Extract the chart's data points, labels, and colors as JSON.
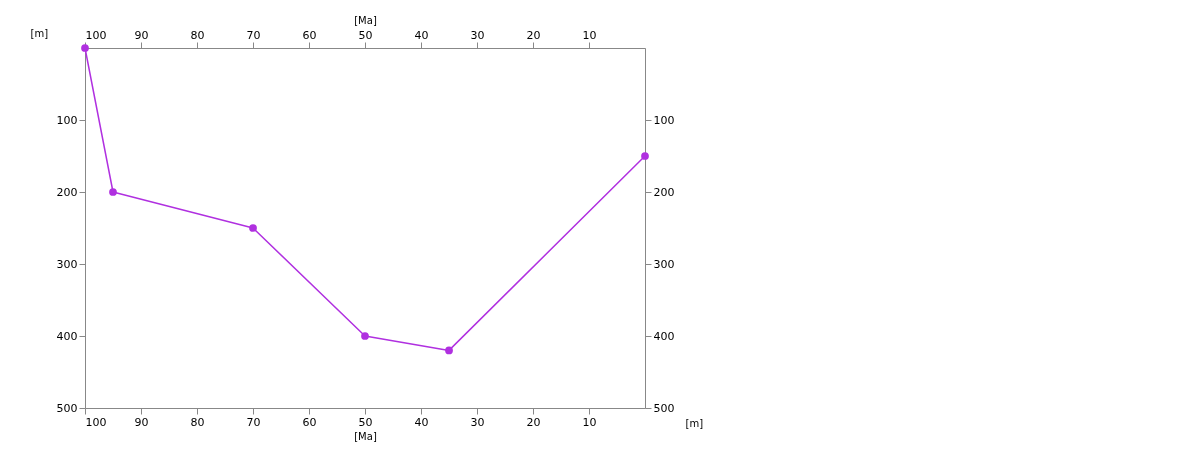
{
  "chart_data": {
    "type": "line",
    "xlabel": "[Ma]",
    "x2label": "[Ma]",
    "ylabel": "[m]",
    "y2label": "[m]",
    "x": [
      100,
      95,
      70,
      50,
      35,
      0
    ],
    "series": [
      {
        "color": "#b030e0",
        "values": [
          0,
          200,
          250,
          400,
          420,
          150
        ]
      }
    ],
    "xlim": [
      100,
      0
    ],
    "xticks": [
      100,
      90,
      80,
      70,
      60,
      50,
      40,
      30,
      20,
      10
    ],
    "x2lim": [
      100,
      0
    ],
    "x2ticks": [
      100,
      90,
      80,
      70,
      60,
      50,
      40,
      30,
      20,
      10
    ],
    "ylim": [
      500,
      0
    ],
    "yticks": [
      100,
      200,
      300,
      400,
      500
    ],
    "y2lim": [
      500,
      0
    ],
    "y2ticks": [
      100,
      200,
      300,
      400,
      500
    ],
    "marker": "circle",
    "line_style": "solid",
    "grid": false,
    "legend": false
  }
}
